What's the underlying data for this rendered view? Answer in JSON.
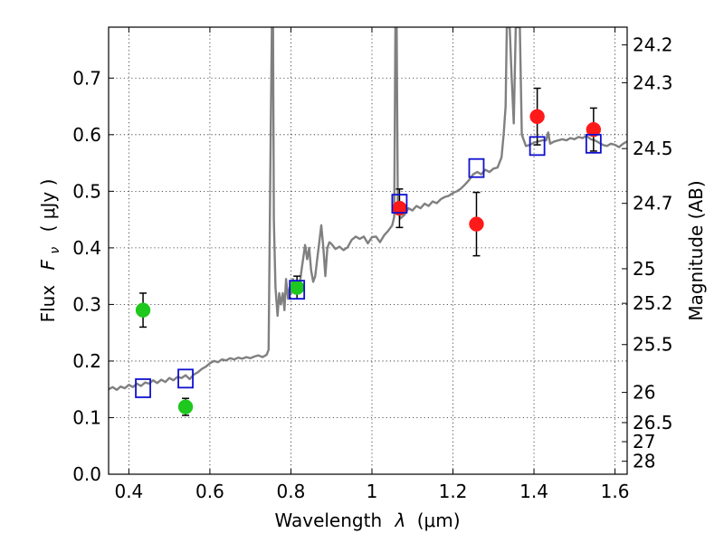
{
  "chart_data": {
    "type": "scatter",
    "xlabel_text": "Wavelength",
    "xlabel_symbol": "λ",
    "xlabel_unit": "(μm)",
    "ylabel_text": "Flux",
    "ylabel_symbol": "F",
    "ylabel_sub": "ν",
    "ylabel_unit": "( μJy )",
    "y2label": "Magnitude (AB)",
    "xlim": [
      0.35,
      1.63
    ],
    "ylim": [
      0.0,
      0.79
    ],
    "xticks": [
      {
        "v": 0.4,
        "label": "0.4"
      },
      {
        "v": 0.6,
        "label": "0.6"
      },
      {
        "v": 0.8,
        "label": "0.8"
      },
      {
        "v": 1.0,
        "label": "1"
      },
      {
        "v": 1.2,
        "label": "1.2"
      },
      {
        "v": 1.4,
        "label": "1.4"
      },
      {
        "v": 1.6,
        "label": "1.6"
      }
    ],
    "yticks": [
      {
        "v": 0.0,
        "label": "0.0"
      },
      {
        "v": 0.1,
        "label": "0.1"
      },
      {
        "v": 0.2,
        "label": "0.2"
      },
      {
        "v": 0.3,
        "label": "0.3"
      },
      {
        "v": 0.4,
        "label": "0.4"
      },
      {
        "v": 0.5,
        "label": "0.5"
      },
      {
        "v": 0.6,
        "label": "0.6"
      },
      {
        "v": 0.7,
        "label": "0.7"
      }
    ],
    "magticks": [
      {
        "mag": 24.2,
        "label": "24.2"
      },
      {
        "mag": 24.3,
        "label": "24.3"
      },
      {
        "mag": 24.5,
        "label": "24.5"
      },
      {
        "mag": 24.7,
        "label": "24.7"
      },
      {
        "mag": 25.0,
        "label": "25"
      },
      {
        "mag": 25.2,
        "label": "25.2"
      },
      {
        "mag": 25.5,
        "label": "25.5"
      },
      {
        "mag": 26.0,
        "label": "26"
      },
      {
        "mag": 26.5,
        "label": "26.5"
      },
      {
        "mag": 27.0,
        "label": "27"
      },
      {
        "mag": 28.0,
        "label": "28"
      }
    ],
    "sed_template": {
      "name": "model spectrum",
      "color": "#808080",
      "points": [
        [
          0.35,
          0.15
        ],
        [
          0.36,
          0.154
        ],
        [
          0.37,
          0.149
        ],
        [
          0.38,
          0.155
        ],
        [
          0.39,
          0.152
        ],
        [
          0.4,
          0.158
        ],
        [
          0.41,
          0.154
        ],
        [
          0.42,
          0.16
        ],
        [
          0.43,
          0.156
        ],
        [
          0.44,
          0.162
        ],
        [
          0.45,
          0.16
        ],
        [
          0.46,
          0.166
        ],
        [
          0.47,
          0.161
        ],
        [
          0.48,
          0.167
        ],
        [
          0.49,
          0.163
        ],
        [
          0.5,
          0.17
        ],
        [
          0.51,
          0.166
        ],
        [
          0.52,
          0.172
        ],
        [
          0.53,
          0.17
        ],
        [
          0.54,
          0.175
        ],
        [
          0.55,
          0.168
        ],
        [
          0.56,
          0.176
        ],
        [
          0.57,
          0.18
        ],
        [
          0.58,
          0.186
        ],
        [
          0.59,
          0.19
        ],
        [
          0.6,
          0.196
        ],
        [
          0.61,
          0.2
        ],
        [
          0.62,
          0.198
        ],
        [
          0.63,
          0.203
        ],
        [
          0.64,
          0.201
        ],
        [
          0.65,
          0.205
        ],
        [
          0.66,
          0.203
        ],
        [
          0.67,
          0.206
        ],
        [
          0.68,
          0.204
        ],
        [
          0.69,
          0.207
        ],
        [
          0.7,
          0.205
        ],
        [
          0.71,
          0.208
        ],
        [
          0.72,
          0.21
        ],
        [
          0.73,
          0.207
        ],
        [
          0.74,
          0.211
        ],
        [
          0.745,
          0.22
        ],
        [
          0.75,
          0.6
        ],
        [
          0.753,
          0.79
        ],
        [
          0.756,
          0.79
        ],
        [
          0.758,
          0.45
        ],
        [
          0.762,
          0.33
        ],
        [
          0.767,
          0.28
        ],
        [
          0.771,
          0.32
        ],
        [
          0.775,
          0.3
        ],
        [
          0.78,
          0.32
        ],
        [
          0.784,
          0.29
        ],
        [
          0.788,
          0.345
        ],
        [
          0.793,
          0.31
        ],
        [
          0.797,
          0.33
        ],
        [
          0.8,
          0.318
        ],
        [
          0.805,
          0.345
        ],
        [
          0.81,
          0.33
        ],
        [
          0.815,
          0.34
        ],
        [
          0.82,
          0.325
        ],
        [
          0.826,
          0.36
        ],
        [
          0.83,
          0.38
        ],
        [
          0.835,
          0.405
        ],
        [
          0.84,
          0.38
        ],
        [
          0.845,
          0.4
        ],
        [
          0.85,
          0.36
        ],
        [
          0.855,
          0.34
        ],
        [
          0.86,
          0.35
        ],
        [
          0.865,
          0.38
        ],
        [
          0.87,
          0.41
        ],
        [
          0.875,
          0.44
        ],
        [
          0.88,
          0.4
        ],
        [
          0.885,
          0.35
        ],
        [
          0.89,
          0.4
        ],
        [
          0.895,
          0.41
        ],
        [
          0.9,
          0.407
        ],
        [
          0.91,
          0.398
        ],
        [
          0.92,
          0.402
        ],
        [
          0.93,
          0.396
        ],
        [
          0.94,
          0.401
        ],
        [
          0.95,
          0.414
        ],
        [
          0.96,
          0.42
        ],
        [
          0.97,
          0.416
        ],
        [
          0.98,
          0.42
        ],
        [
          0.99,
          0.408
        ],
        [
          1.0,
          0.419
        ],
        [
          1.01,
          0.42
        ],
        [
          1.02,
          0.41
        ],
        [
          1.03,
          0.422
        ],
        [
          1.04,
          0.43
        ],
        [
          1.05,
          0.44
        ],
        [
          1.055,
          0.455
        ],
        [
          1.058,
          0.79
        ],
        [
          1.061,
          0.79
        ],
        [
          1.064,
          0.47
        ],
        [
          1.07,
          0.452
        ],
        [
          1.08,
          0.458
        ],
        [
          1.09,
          0.47
        ],
        [
          1.1,
          0.466
        ],
        [
          1.11,
          0.474
        ],
        [
          1.12,
          0.47
        ],
        [
          1.13,
          0.478
        ],
        [
          1.14,
          0.474
        ],
        [
          1.15,
          0.482
        ],
        [
          1.16,
          0.479
        ],
        [
          1.17,
          0.486
        ],
        [
          1.18,
          0.49
        ],
        [
          1.19,
          0.492
        ],
        [
          1.2,
          0.497
        ],
        [
          1.21,
          0.5
        ],
        [
          1.22,
          0.505
        ],
        [
          1.23,
          0.512
        ],
        [
          1.24,
          0.52
        ],
        [
          1.25,
          0.53
        ],
        [
          1.26,
          0.534
        ],
        [
          1.27,
          0.53
        ],
        [
          1.28,
          0.538
        ],
        [
          1.29,
          0.534
        ],
        [
          1.3,
          0.54
        ],
        [
          1.31,
          0.542
        ],
        [
          1.32,
          0.56
        ],
        [
          1.325,
          0.6
        ],
        [
          1.33,
          0.65
        ],
        [
          1.333,
          0.79
        ],
        [
          1.34,
          0.79
        ],
        [
          1.345,
          0.7
        ],
        [
          1.35,
          0.62
        ],
        [
          1.355,
          0.79
        ],
        [
          1.365,
          0.79
        ],
        [
          1.37,
          0.6
        ],
        [
          1.38,
          0.58
        ],
        [
          1.39,
          0.582
        ],
        [
          1.4,
          0.586
        ],
        [
          1.41,
          0.588
        ],
        [
          1.42,
          0.59
        ],
        [
          1.43,
          0.59
        ],
        [
          1.435,
          0.604
        ],
        [
          1.44,
          0.584
        ],
        [
          1.45,
          0.588
        ],
        [
          1.46,
          0.59
        ],
        [
          1.47,
          0.592
        ],
        [
          1.48,
          0.59
        ],
        [
          1.49,
          0.594
        ],
        [
          1.5,
          0.592
        ],
        [
          1.51,
          0.596
        ],
        [
          1.52,
          0.594
        ],
        [
          1.53,
          0.598
        ],
        [
          1.54,
          0.592
        ],
        [
          1.55,
          0.59
        ],
        [
          1.56,
          0.586
        ],
        [
          1.57,
          0.582
        ],
        [
          1.58,
          0.58
        ],
        [
          1.59,
          0.584
        ],
        [
          1.6,
          0.582
        ],
        [
          1.61,
          0.578
        ],
        [
          1.62,
          0.584
        ],
        [
          1.63,
          0.588
        ]
      ]
    },
    "series": [
      {
        "name": "green measurements",
        "marker": "circle",
        "color": "#1ec81e",
        "points": [
          {
            "x": 0.435,
            "y": 0.29,
            "err": 0.03
          },
          {
            "x": 0.54,
            "y": 0.119,
            "err": 0.015
          },
          {
            "x": 0.815,
            "y": 0.33,
            "err": 0.02
          }
        ]
      },
      {
        "name": "red measurements",
        "marker": "circle",
        "color": "#ff1a1a",
        "points": [
          {
            "x": 1.068,
            "y": 0.47,
            "err": 0.034
          },
          {
            "x": 1.258,
            "y": 0.442,
            "err": 0.056
          },
          {
            "x": 1.408,
            "y": 0.632,
            "err": 0.05
          },
          {
            "x": 1.547,
            "y": 0.609,
            "err": 0.038
          }
        ]
      },
      {
        "name": "model band flux",
        "marker": "open-square",
        "color": "#1010d0",
        "points": [
          {
            "x": 0.435,
            "y": 0.152
          },
          {
            "x": 0.54,
            "y": 0.169
          },
          {
            "x": 0.815,
            "y": 0.326
          },
          {
            "x": 1.068,
            "y": 0.478
          },
          {
            "x": 1.258,
            "y": 0.541
          },
          {
            "x": 1.408,
            "y": 0.58
          },
          {
            "x": 1.547,
            "y": 0.584
          }
        ]
      }
    ]
  }
}
